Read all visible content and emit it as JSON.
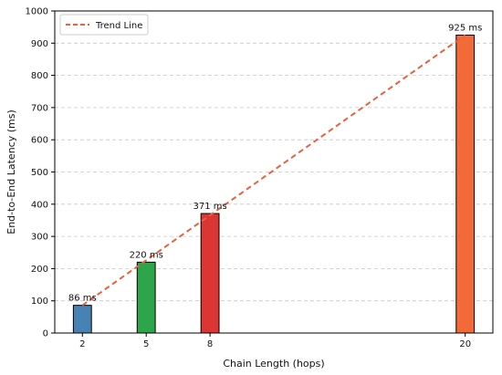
{
  "chart_data": {
    "type": "bar",
    "xlabel": "Chain Length (hops)",
    "ylabel": "End-to-End Latency (ms)",
    "x": [
      2,
      5,
      8,
      20
    ],
    "values": [
      86,
      220,
      371,
      925
    ],
    "data_labels": [
      "86 ms",
      "220 ms",
      "371 ms",
      "925 ms"
    ],
    "bar_colors": [
      "#4682b4",
      "#2ca54b",
      "#db3534",
      "#f26a38"
    ],
    "xlim": [
      0.7,
      21.3
    ],
    "ylim": [
      0,
      1000
    ],
    "y_ticks": [
      0,
      100,
      200,
      300,
      400,
      500,
      600,
      700,
      800,
      900,
      1000
    ],
    "x_ticks": [
      2,
      5,
      8,
      20
    ],
    "grid": "horizontal dashed",
    "trend_line": {
      "name": "Trend Line",
      "color": "#e8603c",
      "style": "dashed",
      "x": [
        2,
        20
      ],
      "y": [
        86,
        925
      ]
    },
    "legend_position": "top-left"
  }
}
